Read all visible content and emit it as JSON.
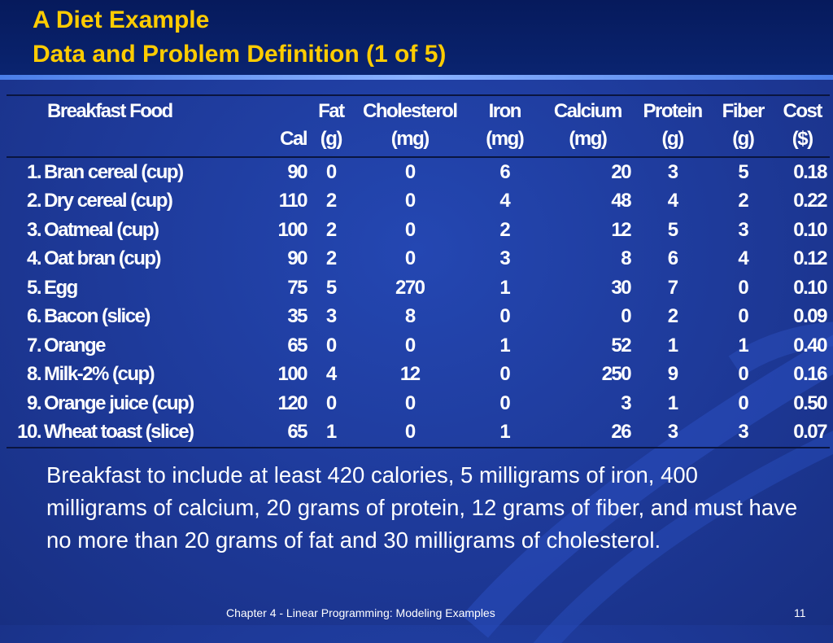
{
  "slide": {
    "title_line1": "A Diet Example",
    "title_line2": "Data and Problem Definition (1 of 5)",
    "description": "Breakfast to include at least 420 calories, 5 milligrams of iron, 400 milligrams of calcium, 20 grams of protein, 12 grams of fiber, and must have no more than 20 grams of fat and 30 milligrams of cholesterol.",
    "footer": "Chapter 4 - Linear Programming:  Modeling Examples",
    "page_number": "11"
  },
  "table": {
    "headers_row1": [
      "Breakfast Food",
      "",
      "Fat",
      "Cholesterol",
      "Iron",
      "Calcium",
      "Protein",
      "Fiber",
      "Cost"
    ],
    "headers_row2": [
      "",
      "Cal",
      "(g)",
      "(mg)",
      "(mg)",
      "(mg)",
      "(g)",
      "(g)",
      "($)"
    ],
    "rows": [
      {
        "num": "1.",
        "food": "Bran cereal (cup)",
        "cal": "90",
        "fat": "0",
        "chol": "0",
        "iron": "6",
        "calcium": "20",
        "protein": "3",
        "fiber": "5",
        "cost": "0.18"
      },
      {
        "num": "2.",
        "food": "Dry cereal (cup)",
        "cal": "110",
        "fat": "2",
        "chol": "0",
        "iron": "4",
        "calcium": "48",
        "protein": "4",
        "fiber": "2",
        "cost": "0.22"
      },
      {
        "num": "3.",
        "food": "Oatmeal (cup)",
        "cal": "100",
        "fat": "2",
        "chol": "0",
        "iron": "2",
        "calcium": "12",
        "protein": "5",
        "fiber": "3",
        "cost": "0.10"
      },
      {
        "num": "4.",
        "food": "Oat bran (cup)",
        "cal": "90",
        "fat": "2",
        "chol": "0",
        "iron": "3",
        "calcium": "8",
        "protein": "6",
        "fiber": "4",
        "cost": "0.12"
      },
      {
        "num": "5.",
        "food": "Egg",
        "cal": "75",
        "fat": "5",
        "chol": "270",
        "iron": "1",
        "calcium": "30",
        "protein": "7",
        "fiber": "0",
        "cost": "0.10"
      },
      {
        "num": "6.",
        "food": "Bacon (slice)",
        "cal": "35",
        "fat": "3",
        "chol": "8",
        "iron": "0",
        "calcium": "0",
        "protein": "2",
        "fiber": "0",
        "cost": "0.09"
      },
      {
        "num": "7.",
        "food": "Orange",
        "cal": "65",
        "fat": "0",
        "chol": "0",
        "iron": "1",
        "calcium": "52",
        "protein": "1",
        "fiber": "1",
        "cost": "0.40"
      },
      {
        "num": "8.",
        "food": "Milk-2% (cup)",
        "cal": "100",
        "fat": "4",
        "chol": "12",
        "iron": "0",
        "calcium": "250",
        "protein": "9",
        "fiber": "0",
        "cost": "0.16"
      },
      {
        "num": "9.",
        "food": "Orange juice (cup)",
        "cal": "120",
        "fat": "0",
        "chol": "0",
        "iron": "0",
        "calcium": "3",
        "protein": "1",
        "fiber": "0",
        "cost": "0.50"
      },
      {
        "num": "10.",
        "food": "Wheat toast (slice)",
        "cal": "65",
        "fat": "1",
        "chol": "0",
        "iron": "1",
        "calcium": "26",
        "protein": "3",
        "fiber": "3",
        "cost": "0.07"
      }
    ]
  },
  "colors": {
    "background": "#1e3a9c",
    "title": "#ffcc00",
    "text": "#ffffff"
  }
}
